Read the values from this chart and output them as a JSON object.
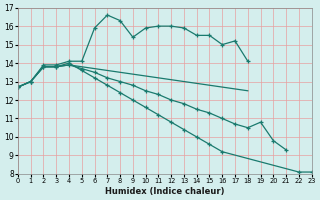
{
  "xlabel": "Humidex (Indice chaleur)",
  "bg_color": "#d4eeed",
  "line_color": "#1a7a6e",
  "grid_color": "#e8a0a0",
  "xlim": [
    0,
    23
  ],
  "ylim": [
    8,
    17
  ],
  "xticks": [
    0,
    1,
    2,
    3,
    4,
    5,
    6,
    7,
    8,
    9,
    10,
    11,
    12,
    13,
    14,
    15,
    16,
    17,
    18,
    19,
    20,
    21,
    22,
    23
  ],
  "yticks": [
    8,
    9,
    10,
    11,
    12,
    13,
    14,
    15,
    16,
    17
  ],
  "line1_x": [
    0,
    1,
    2,
    3,
    4,
    5,
    6,
    7,
    8,
    9,
    10,
    11,
    12,
    13,
    14,
    15,
    16,
    17,
    18
  ],
  "line1_y": [
    12.7,
    13.0,
    13.9,
    13.9,
    14.1,
    14.1,
    15.9,
    16.6,
    16.3,
    15.4,
    15.9,
    16.0,
    16.0,
    15.9,
    15.5,
    15.5,
    15.0,
    15.2,
    14.1
  ],
  "line2_x": [
    0,
    1,
    2,
    3,
    4,
    5,
    6,
    7,
    8,
    9,
    10,
    11,
    12,
    13,
    14,
    15,
    16,
    17,
    18
  ],
  "line2_y": [
    12.7,
    13.0,
    13.8,
    13.8,
    13.9,
    13.8,
    13.7,
    13.6,
    13.5,
    13.4,
    13.3,
    13.2,
    13.1,
    13.0,
    12.9,
    12.8,
    12.7,
    12.6,
    12.5
  ],
  "line3_x": [
    0,
    1,
    2,
    3,
    4,
    5,
    6,
    7,
    8,
    9,
    10,
    11,
    12,
    13,
    14,
    15,
    16,
    17,
    18,
    19,
    20,
    21
  ],
  "line3_y": [
    12.7,
    13.0,
    13.8,
    13.8,
    13.9,
    13.7,
    13.5,
    13.2,
    13.0,
    12.8,
    12.5,
    12.3,
    12.0,
    11.8,
    11.5,
    11.3,
    11.0,
    10.7,
    10.5,
    10.8,
    9.8,
    9.3
  ],
  "line4_x": [
    0,
    1,
    2,
    3,
    4,
    5,
    6,
    7,
    8,
    9,
    10,
    11,
    12,
    13,
    14,
    15,
    16,
    22,
    23
  ],
  "line4_y": [
    12.7,
    13.0,
    13.8,
    13.8,
    14.0,
    13.6,
    13.2,
    12.8,
    12.4,
    12.0,
    11.6,
    11.2,
    10.8,
    10.4,
    10.0,
    9.6,
    9.2,
    8.1,
    8.1
  ]
}
